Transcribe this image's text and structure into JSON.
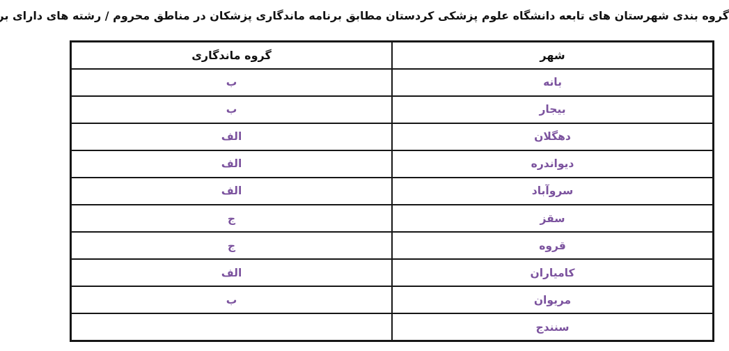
{
  "page": {
    "title": "گروه بندی شهرستان های تابعه دانشگاه علوم پزشکی کردستان مطابق برنامه ماندگاری پزشکان در مناطق محروم / رشته های دارای برنامه مقیمی در شهرستان های تابعه"
  },
  "table": {
    "columns": [
      {
        "key": "city",
        "label": "شهر"
      },
      {
        "key": "group",
        "label": "گروه ماندگاری"
      }
    ],
    "rows": [
      {
        "city": "بانه",
        "group": "ب"
      },
      {
        "city": "بیجار",
        "group": "ب"
      },
      {
        "city": "دهگلان",
        "group": "الف"
      },
      {
        "city": "دیواندره",
        "group": "الف"
      },
      {
        "city": "سروآباد",
        "group": "الف"
      },
      {
        "city": "سقز",
        "group": "ج"
      },
      {
        "city": "قروه",
        "group": "ج"
      },
      {
        "city": "کامیاران",
        "group": "الف"
      },
      {
        "city": "مریوان",
        "group": "ب"
      },
      {
        "city": "سنندج",
        "group": ""
      }
    ]
  },
  "colors": {
    "cell_text_purple": "#7B529E",
    "title_text": "#111111",
    "table_border": "#161616",
    "background": "#ffffff"
  }
}
